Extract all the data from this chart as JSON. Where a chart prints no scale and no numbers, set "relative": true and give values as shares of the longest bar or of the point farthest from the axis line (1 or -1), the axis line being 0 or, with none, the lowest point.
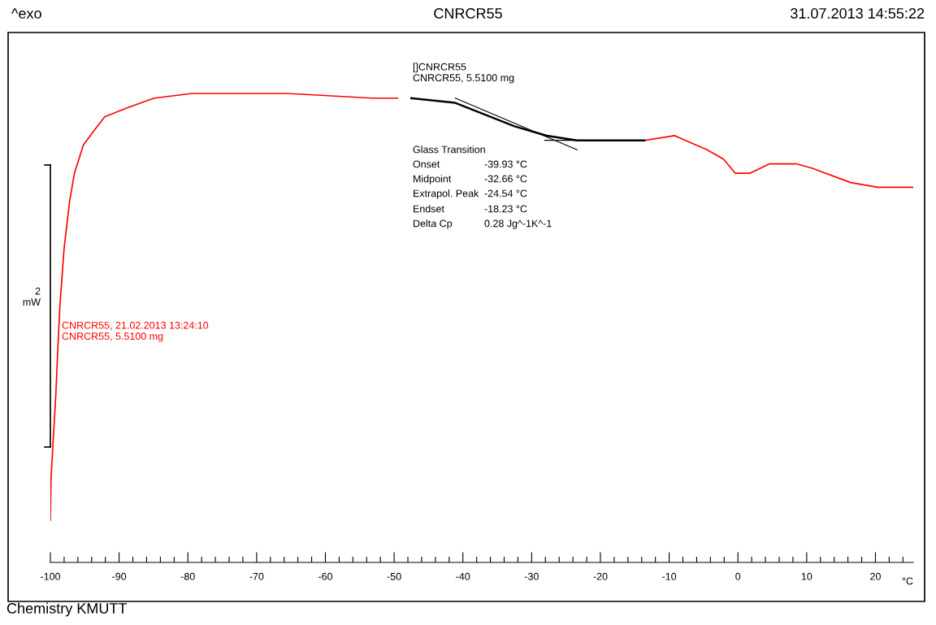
{
  "chart_data": {
    "type": "line",
    "title": "CNRCR55",
    "xlabel": "°C",
    "relative": true,
    "grid": false,
    "legend": false,
    "marker": "none",
    "line_style": "solid",
    "xlim": [
      -100,
      25.5
    ],
    "xticks": [
      -100,
      {
        "value": -98,
        "label": null
      },
      {
        "value": -96,
        "label": null
      },
      {
        "value": -94,
        "label": null
      },
      {
        "value": -92,
        "label": null
      },
      -90,
      {
        "value": -88,
        "label": null
      },
      {
        "value": -86,
        "label": null
      },
      {
        "value": -84,
        "label": null
      },
      {
        "value": -82,
        "label": null
      },
      -80,
      {
        "value": -78,
        "label": null
      },
      {
        "value": -76,
        "label": null
      },
      {
        "value": -74,
        "label": null
      },
      {
        "value": -72,
        "label": null
      },
      -70,
      {
        "value": -68,
        "label": null
      },
      {
        "value": -66,
        "label": null
      },
      {
        "value": -64,
        "label": null
      },
      {
        "value": -62,
        "label": null
      },
      -60,
      {
        "value": -58,
        "label": null
      },
      {
        "value": -56,
        "label": null
      },
      {
        "value": -54,
        "label": null
      },
      {
        "value": -52,
        "label": null
      },
      -50,
      {
        "value": -48,
        "label": null
      },
      {
        "value": -46,
        "label": null
      },
      {
        "value": -44,
        "label": null
      },
      {
        "value": -42,
        "label": null
      },
      -40,
      {
        "value": -38,
        "label": null
      },
      {
        "value": -36,
        "label": null
      },
      {
        "value": -34,
        "label": null
      },
      {
        "value": -32,
        "label": null
      },
      -30,
      {
        "value": -28,
        "label": null
      },
      {
        "value": -26,
        "label": null
      },
      {
        "value": -24,
        "label": null
      },
      {
        "value": -22,
        "label": null
      },
      -20,
      {
        "value": -18,
        "label": null
      },
      {
        "value": -16,
        "label": null
      },
      {
        "value": -14,
        "label": null
      },
      {
        "value": -12,
        "label": null
      },
      -10,
      {
        "value": -8,
        "label": null
      },
      {
        "value": -6,
        "label": null
      },
      {
        "value": -4,
        "label": null
      },
      {
        "value": -2,
        "label": null
      },
      0,
      {
        "value": 2,
        "label": null
      },
      {
        "value": 4,
        "label": null
      },
      {
        "value": 6,
        "label": null
      },
      {
        "value": 8,
        "label": null
      },
      10,
      {
        "value": 12,
        "label": null
      },
      {
        "value": 14,
        "label": null
      },
      {
        "value": 16,
        "label": null
      },
      {
        "value": 18,
        "label": null
      },
      20,
      {
        "value": 22,
        "label": null
      },
      {
        "value": 24,
        "label": null
      }
    ],
    "series": [
      {
        "color": "#ff0000",
        "x": [
          -100,
          -99.9,
          -99.2,
          -98.9,
          -98.6,
          -98.0,
          -97.2,
          -96.5,
          -95.2,
          -93.7,
          -92.1,
          -88.7,
          -84.9,
          -79.4,
          -73.0,
          -65.5,
          -53.2,
          -49.5,
          -47.0,
          -41.1,
          -32.5,
          -27.8,
          -23.4,
          -13.6,
          -9.2,
          -4.5,
          -2.1,
          -0.4,
          1.8,
          4.6,
          8.5,
          10.9,
          16.4,
          20.3,
          25.4
        ],
        "values": [
          0.09,
          0.18,
          0.36,
          0.46,
          0.55,
          0.67,
          0.77,
          0.83,
          0.89,
          0.92,
          0.95,
          0.97,
          0.99,
          1.0,
          1.0,
          1.0,
          0.99,
          0.99,
          null,
          null,
          null,
          null,
          null,
          0.9,
          0.91,
          0.88,
          0.86,
          0.83,
          0.83,
          0.85,
          0.85,
          0.84,
          0.81,
          0.8,
          0.8
        ]
      },
      {
        "color": "#000000",
        "x": [
          -47.5,
          -41.1,
          -32.5,
          -27.8,
          -23.4,
          -13.6
        ],
        "values": [
          0.99,
          0.98,
          0.93,
          0.91,
          0.9,
          0.9
        ]
      },
      {
        "color": "#000000",
        "x": [
          -41.1,
          -23.4
        ],
        "values": [
          0.99,
          0.88
        ]
      },
      {
        "color": "#000000",
        "x": [
          -28.1,
          -13.6
        ],
        "values": [
          0.9,
          0.9
        ]
      }
    ],
    "annotations": [
      "^exo",
      "31.07.2013 14:55:22",
      "[]CNRCR55\nCNRCR55, 5.5100 mg",
      "Glass Transition",
      "Onset",
      "-39.93 °C",
      "Midpoint",
      "-32.66 °C",
      "Extrapol. Peak",
      "-24.54 °C",
      "Endset",
      "-18.23 °C",
      "Delta Cp",
      "0.28 Jg^-1K^-1",
      "CNRCR55, 21.02.2013 13:24:10\nCNRCR55, 5.5100 mg",
      "2\nmW",
      "Chemistry KMUTT"
    ]
  }
}
